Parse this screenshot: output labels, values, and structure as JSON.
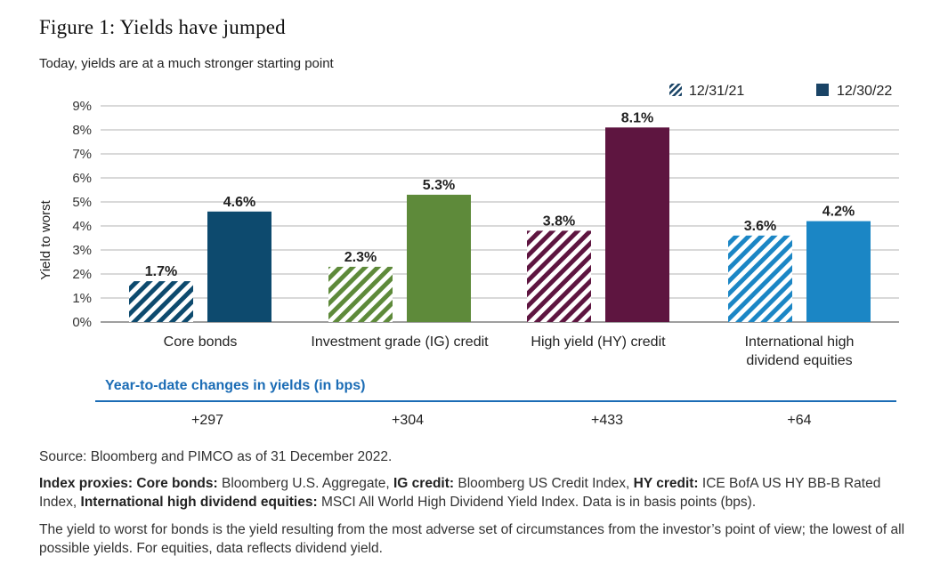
{
  "figure_title": "Figure 1: Yields have jumped",
  "subtitle": "Today, yields are at a much stronger starting point",
  "legend": {
    "series1_label": "12/31/21",
    "series2_label": "12/30/22"
  },
  "colors": {
    "core_bonds": "#0d4a6e",
    "ig_credit": "#5e8a3a",
    "hy_credit": "#5e1540",
    "intl_equities": "#1b86c5",
    "legend_dark": "#1a4466",
    "ytd_blue": "#1b6cb5"
  },
  "chart_data": {
    "type": "bar",
    "title": "Figure 1: Yields have jumped",
    "subtitle": "Today, yields are at a much stronger starting point",
    "ylabel": "Yield to worst",
    "xlabel": "",
    "ylim": [
      0,
      9
    ],
    "yticks": [
      "0%",
      "1%",
      "2%",
      "3%",
      "4%",
      "5%",
      "6%",
      "7%",
      "8%",
      "9%"
    ],
    "grid": true,
    "legend_position": "top-right",
    "categories": [
      "Core bonds",
      "Investment grade (IG) credit",
      "High yield (HY) credit",
      "International high dividend equities"
    ],
    "category_lines": [
      [
        "Core bonds"
      ],
      [
        "Investment grade (IG) credit"
      ],
      [
        "High yield (HY) credit"
      ],
      [
        "International high",
        "dividend equities"
      ]
    ],
    "series": [
      {
        "name": "12/31/21",
        "pattern": "hatched",
        "values": [
          1.7,
          2.3,
          3.8,
          3.6
        ],
        "labels": [
          "1.7%",
          "2.3%",
          "3.8%",
          "3.6%"
        ]
      },
      {
        "name": "12/30/22",
        "pattern": "solid",
        "values": [
          4.6,
          5.3,
          8.1,
          4.2
        ],
        "labels": [
          "4.6%",
          "5.3%",
          "8.1%",
          "4.2%"
        ]
      }
    ]
  },
  "ytd": {
    "title": "Year-to-date changes in yields (in bps)",
    "values": [
      "+297",
      "+304",
      "+433",
      "+64"
    ]
  },
  "notes": {
    "source": "Source: Bloomberg and PIMCO as of 31 December 2022.",
    "index_proxies_prefix": "Index proxies: ",
    "core_label": "Core bonds:",
    "core_text": " Bloomberg U.S. Aggregate, ",
    "ig_label": "IG credit:",
    "ig_text": " Bloomberg US Credit Index, ",
    "hy_label": "HY credit:",
    "hy_text": " ICE BofA US HY BB-B Rated Index, ",
    "intl_label": "International high dividend equities:",
    "intl_text": " MSCI All World High Dividend Yield Index. Data is in basis points (bps).",
    "ytw_text": "The yield to worst for bonds is the yield resulting from the most adverse set of circumstances from the investor’s point of view; the lowest of all possible yields. For equities, data reflects dividend yield."
  }
}
